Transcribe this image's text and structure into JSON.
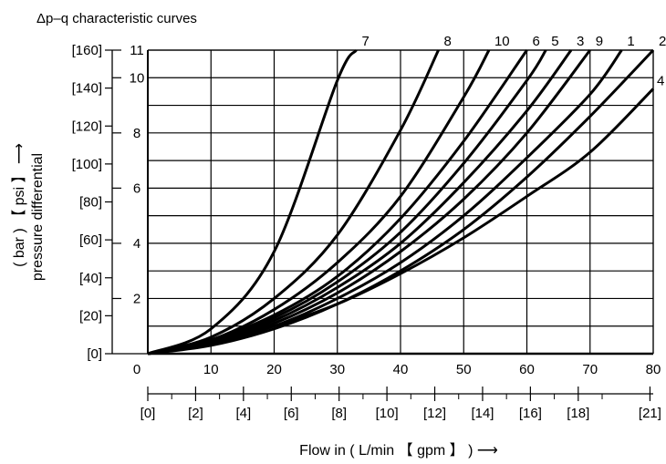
{
  "chart_data": {
    "type": "line",
    "title": "Δp–q characteristic curves",
    "xlabel": "Flow in ( L/min 【 gpm 】 ) ⟶",
    "ylabel_top": "( bar ) 【 psi 】 ⟶",
    "ylabel_bottom": "pressure differential",
    "x_primary": {
      "unit": "L/min",
      "range": [
        0,
        80
      ],
      "ticks": [
        "0",
        "10",
        "20",
        "30",
        "40",
        "50",
        "60",
        "70",
        "80"
      ]
    },
    "x_secondary": {
      "unit": "gpm",
      "ticks": [
        "[0]",
        "[2]",
        "[4]",
        "[6]",
        "[8]",
        "[10]",
        "[12]",
        "[14]",
        "[16]",
        "[18]",
        "[21]"
      ]
    },
    "y_primary": {
      "unit": "bar",
      "range": [
        0,
        11
      ],
      "ticks": [
        "2",
        "4",
        "6",
        "8",
        "10",
        "11"
      ]
    },
    "y_secondary": {
      "unit": "psi",
      "ticks": [
        "[0]",
        "[20]",
        "[40]",
        "[60]",
        "[80]",
        "[100]",
        "[120]",
        "[140]",
        "[160]"
      ]
    },
    "grid": true,
    "series": [
      {
        "name": "7",
        "x": [
          0,
          10,
          20,
          30,
          33
        ],
        "y": [
          0,
          0.9,
          3.7,
          9.9,
          11
        ]
      },
      {
        "name": "8",
        "x": [
          0,
          10,
          20,
          30,
          40,
          46
        ],
        "y": [
          0,
          0.6,
          2.0,
          4.3,
          8.1,
          11
        ]
      },
      {
        "name": "10",
        "x": [
          0,
          10,
          20,
          30,
          40,
          50,
          54
        ],
        "y": [
          0,
          0.5,
          1.6,
          3.3,
          5.7,
          9.3,
          11
        ]
      },
      {
        "name": "6",
        "x": [
          0,
          10,
          20,
          30,
          40,
          50,
          60
        ],
        "y": [
          0,
          0.5,
          1.4,
          2.8,
          4.9,
          7.7,
          11
        ]
      },
      {
        "name": "5",
        "x": [
          0,
          10,
          20,
          30,
          40,
          50,
          60,
          63
        ],
        "y": [
          0,
          0.45,
          1.3,
          2.6,
          4.4,
          6.9,
          9.9,
          11
        ]
      },
      {
        "name": "3",
        "x": [
          0,
          10,
          20,
          30,
          40,
          50,
          60,
          67
        ],
        "y": [
          0,
          0.4,
          1.2,
          2.4,
          4.0,
          6.2,
          8.8,
          11
        ]
      },
      {
        "name": "9",
        "x": [
          0,
          10,
          20,
          30,
          40,
          50,
          60,
          70
        ],
        "y": [
          0,
          0.35,
          1.1,
          2.2,
          3.7,
          5.6,
          8.0,
          11
        ]
      },
      {
        "name": "1",
        "x": [
          0,
          10,
          20,
          30,
          40,
          50,
          60,
          70,
          75
        ],
        "y": [
          0,
          0.35,
          1.0,
          2.0,
          3.3,
          5.0,
          7.1,
          9.4,
          11
        ]
      },
      {
        "name": "2",
        "x": [
          0,
          10,
          20,
          30,
          40,
          50,
          60,
          70,
          80
        ],
        "y": [
          0,
          0.3,
          0.9,
          1.8,
          3.0,
          4.5,
          6.4,
          8.6,
          11
        ]
      },
      {
        "name": "4",
        "x": [
          0,
          10,
          20,
          30,
          40,
          50,
          60,
          70,
          80
        ],
        "y": [
          0,
          0.4,
          1.0,
          1.8,
          2.9,
          4.2,
          5.7,
          7.3,
          9.6
        ]
      }
    ]
  }
}
